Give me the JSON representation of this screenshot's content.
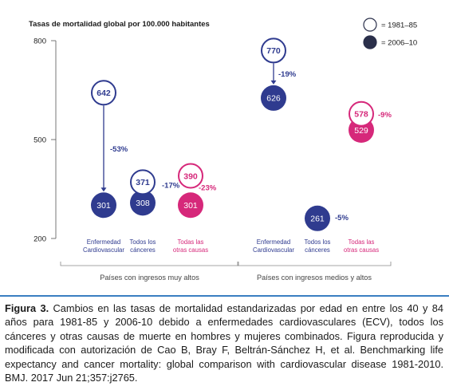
{
  "chart_data": {
    "type": "scatter",
    "title": "Tasas de mortalidad global por 100.000 habitantes",
    "yticks": [
      800,
      500,
      200
    ],
    "ylim": [
      200,
      800
    ],
    "legend": [
      {
        "label": "= 1981–85",
        "style": "open"
      },
      {
        "label": "= 2006–10",
        "style": "filled"
      }
    ],
    "groups": [
      {
        "label": "Países con ingresos muy altos",
        "categories": [
          {
            "name": [
              "Enfermedad",
              "Cardiovascular"
            ],
            "v1981": 642,
            "v2006": 301,
            "change": "-53%",
            "color": "#2f3b8f"
          },
          {
            "name": [
              "Todos los",
              "cánceres"
            ],
            "v1981": 371,
            "v2006": 308,
            "change": "-17%",
            "color": "#2f3b8f"
          },
          {
            "name": [
              "Todas las",
              "otras causas"
            ],
            "v1981": 390,
            "v2006": 301,
            "change": "-23%",
            "color": "#d6287a"
          }
        ]
      },
      {
        "label": "Países con ingresos medios y altos",
        "categories": [
          {
            "name": [
              "Enfermedad",
              "Cardiovascular"
            ],
            "v1981": 770,
            "v2006": 626,
            "change": "-19%",
            "color": "#2f3b8f"
          },
          {
            "name": [
              "Todos los",
              "cánceres"
            ],
            "v1981": null,
            "v2006": 261,
            "change": "-5%",
            "color": "#2f3b8f"
          },
          {
            "name": [
              "Todas las",
              "otras causas"
            ],
            "v1981": 578,
            "v2006": 529,
            "change": "-9%",
            "color": "#d6287a"
          }
        ]
      }
    ],
    "colors": {
      "blue": "#2f3b8f",
      "magenta": "#d6287a",
      "text": "#1a1a1a",
      "axis": "#555555"
    }
  },
  "caption": {
    "label": "Figura 3.",
    "text": " Cambios en las tasas de mortalidad estandarizadas por edad en entre los 40 y 84 años para 1981-85 y 2006-10 debido a enfermedades cardiovasculares (ECV), todos los cánceres y otras causas de muerte en hombres y mujeres combinados. Figura reproducida y modificada con autorización de Cao B, Bray F, Beltrán-Sánchez H, et al. Benchmarking life expectancy and cancer mortality: global comparison with cardiovascular disease 1981-2010. BMJ. 2017 Jun 21;357:j2765."
  }
}
